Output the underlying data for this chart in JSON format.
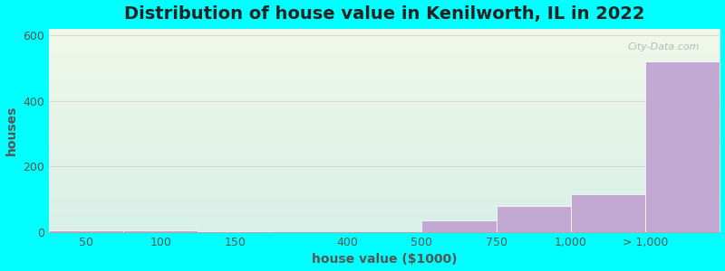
{
  "title": "Distribution of house value in Kenilworth, IL in 2022",
  "xlabel": "house value ($1000)",
  "ylabel": "houses",
  "background_color": "#00FFFF",
  "plot_bg_top": "#f0f8e8",
  "plot_bg_bottom": "#d8f0e8",
  "bar_color": "#c4a8d4",
  "bar_edge_color": "#ffffff",
  "bar_edges": [
    0,
    1,
    2,
    3,
    5,
    6,
    7,
    8,
    9
  ],
  "bar_values": [
    5,
    5,
    3,
    0,
    35,
    80,
    115,
    520
  ],
  "bar_tick_positions": [
    0.5,
    1.5,
    2.5,
    4.0,
    5.5,
    6.5,
    7.5,
    8.5
  ],
  "bar_tick_labels": [
    "50",
    "100",
    "150",
    "400",
    "500",
    "750",
    "1,000",
    "> 1,000"
  ],
  "xlim": [
    0,
    9
  ],
  "ylim": [
    0,
    620
  ],
  "yticks": [
    0,
    200,
    400,
    600
  ],
  "grid_color": "#ddccdd",
  "title_fontsize": 14,
  "axis_label_fontsize": 10,
  "tick_fontsize": 9,
  "watermark": "City-Data.com"
}
